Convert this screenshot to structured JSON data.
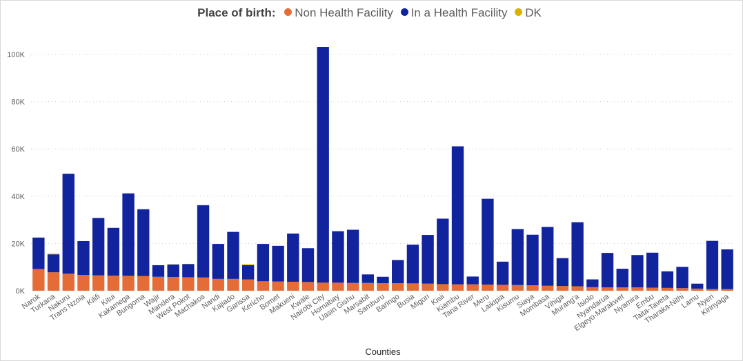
{
  "legend": {
    "title": "Place of birth:",
    "items": [
      {
        "label": "Non Health Facility",
        "color": "#E66C37"
      },
      {
        "label": "In a Health Facility",
        "color": "#12239E"
      },
      {
        "label": "DK",
        "color": "#D9B300"
      }
    ]
  },
  "chart_data": {
    "type": "bar",
    "stacked": true,
    "xlabel": "Counties",
    "ylabel": "",
    "ylim": [
      0,
      105000
    ],
    "yticks": [
      0,
      20000,
      40000,
      60000,
      80000,
      100000
    ],
    "ytick_labels": [
      "0K",
      "20K",
      "40K",
      "60K",
      "80K",
      "100K"
    ],
    "grid": true,
    "legend_position": "top-center",
    "categories": [
      "Narok",
      "Turkana",
      "Nakuru",
      "Trans Nzoia",
      "Kilifi",
      "Kitui",
      "Kakamega",
      "Bungoma",
      "Wajir",
      "Mandera",
      "West Pokot",
      "Machakos",
      "Nandi",
      "Kajiado",
      "Garissa",
      "Kericho",
      "Bomet",
      "Makueni",
      "Kwale",
      "Nairobi City",
      "Homabay",
      "Uasin Gishu",
      "Marsabit",
      "Samburu",
      "Baringo",
      "Busia",
      "Migori",
      "Kisii",
      "Kiambu",
      "Tana River",
      "Meru",
      "Laikipia",
      "Kisumu",
      "Siaya",
      "Mombasa",
      "Vihiga",
      "Murang'a",
      "Isiolo",
      "Nyandarua",
      "Elgeyo-Marakwet",
      "Nyamira",
      "Embu",
      "Taita-Taveta",
      "Tharaka-Nithi",
      "Lamu",
      "Nyeri",
      "Kirinyaga"
    ],
    "series": [
      {
        "name": "Non Health Facility",
        "color": "#E66C37",
        "values": [
          9200,
          7800,
          7200,
          6700,
          6500,
          6400,
          6300,
          6200,
          5900,
          5800,
          5700,
          5600,
          5000,
          5000,
          4800,
          4000,
          3900,
          3800,
          3700,
          3400,
          3400,
          3300,
          3300,
          3200,
          3200,
          3100,
          3000,
          2800,
          2700,
          2700,
          2600,
          2500,
          2400,
          2300,
          2100,
          2000,
          1900,
          1500,
          1400,
          1400,
          1400,
          1300,
          1200,
          1100,
          900,
          700,
          700
        ]
      },
      {
        "name": "In a Health Facility",
        "color": "#12239E",
        "values": [
          13300,
          7600,
          42300,
          14300,
          24300,
          20200,
          34900,
          28300,
          4900,
          5300,
          5600,
          30600,
          14800,
          19900,
          6000,
          15800,
          15100,
          20400,
          14300,
          99800,
          21800,
          22500,
          3600,
          2700,
          9800,
          16400,
          20600,
          27700,
          58400,
          3300,
          36300,
          9800,
          23700,
          21400,
          24900,
          11800,
          27100,
          3300,
          14600,
          7900,
          13700,
          14800,
          7000,
          9000,
          2100,
          20400,
          16800
        ]
      },
      {
        "name": "DK",
        "color": "#D9B300",
        "values": [
          0,
          300,
          0,
          0,
          0,
          0,
          0,
          0,
          0,
          100,
          100,
          0,
          0,
          0,
          400,
          0,
          0,
          0,
          0,
          0,
          0,
          0,
          0,
          0,
          0,
          0,
          0,
          0,
          0,
          0,
          0,
          0,
          0,
          0,
          0,
          0,
          0,
          0,
          0,
          0,
          0,
          0,
          0,
          0,
          0,
          0,
          0
        ]
      }
    ]
  }
}
